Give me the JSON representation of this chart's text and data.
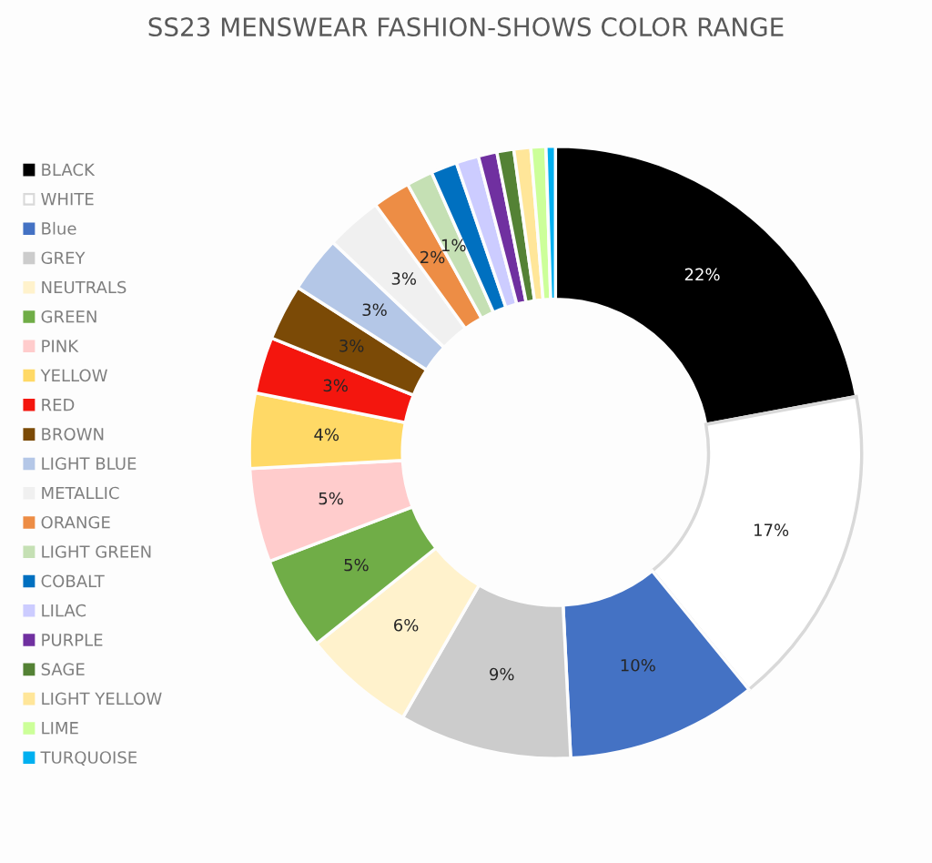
{
  "chart_data": {
    "type": "donut",
    "title": "SS23 MENSWEAR FASHION-SHOWS COLOR RANGE",
    "categories": [
      "BLACK",
      "WHITE",
      "Blue",
      "GREY",
      "NEUTRALS",
      "GREEN",
      "PINK",
      "YELLOW",
      "RED",
      "BROWN",
      "LIGHT BLUE",
      "METALLIC",
      "ORANGE",
      "LIGHT GREEN",
      "COBALT",
      "LILAC",
      "PURPLE",
      "SAGE",
      "LIGHT YELLOW",
      "LIME",
      "TURQUOISE"
    ],
    "values": [
      22.3,
      17.2,
      10.2,
      9.2,
      6,
      5,
      5,
      4,
      3,
      3,
      3,
      3,
      2,
      1.4,
      1.4,
      1.2,
      1.0,
      0.9,
      0.9,
      0.8,
      0.5
    ],
    "value_labels": [
      "22%",
      "17%",
      "10%",
      "9%",
      "6%",
      "5%",
      "5%",
      "4%",
      "3%",
      "3%",
      "3%",
      "3%",
      "2%",
      "1%",
      null,
      null,
      null,
      null,
      null,
      null,
      null
    ],
    "colors": [
      "#000000",
      "#ffffff",
      "#4472c4",
      "#cccccc",
      "#fff2cc",
      "#70ad47",
      "#ffcccc",
      "#ffd966",
      "#f4160e",
      "#7b4a06",
      "#b4c7e7",
      "#f0f0f0",
      "#ed8d45",
      "#c5e0b4",
      "#0070c0",
      "#ccccff",
      "#7030a0",
      "#548235",
      "#ffe699",
      "#ccff99",
      "#00b0f0"
    ],
    "legend": "left"
  }
}
